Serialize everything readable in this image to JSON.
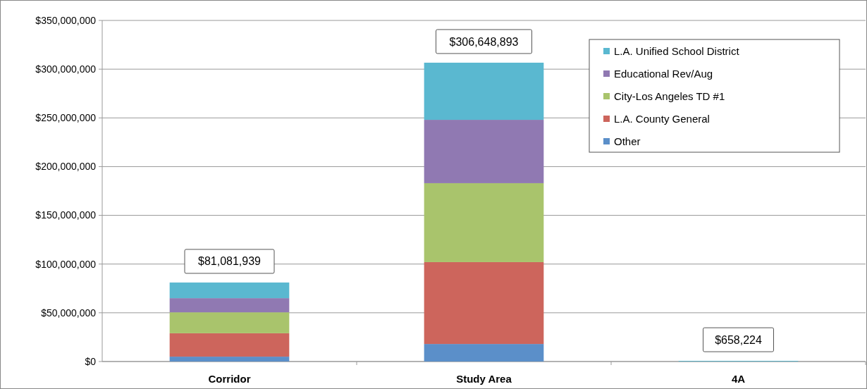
{
  "chart_data": {
    "type": "bar",
    "stacked": true,
    "categories": [
      "Corridor",
      "Study Area",
      "4A"
    ],
    "series": [
      {
        "name": "Other",
        "color": "#5b8fc9",
        "values": [
          5000000,
          18000000,
          0
        ]
      },
      {
        "name": "L.A. County General",
        "color": "#cd655c",
        "values": [
          24000000,
          84000000,
          0
        ]
      },
      {
        "name": "City-Los Angeles TD #1",
        "color": "#a9c46c",
        "values": [
          21500000,
          81000000,
          0
        ]
      },
      {
        "name": "Educational Rev/Aug",
        "color": "#9079b2",
        "values": [
          14500000,
          65000000,
          0
        ]
      },
      {
        "name": "L.A. Unified School District",
        "color": "#5ab8d0",
        "values": [
          16081939,
          58648893,
          658224
        ]
      }
    ],
    "totals": [
      "$81,081,939",
      "$306,648,893",
      "$658,224"
    ],
    "ylim": [
      0,
      350000000
    ],
    "yticks": [
      {
        "value": 0,
        "label": "$0"
      },
      {
        "value": 50000000,
        "label": "$50,000,000"
      },
      {
        "value": 100000000,
        "label": "$100,000,000"
      },
      {
        "value": 150000000,
        "label": "$150,000,000"
      },
      {
        "value": 200000000,
        "label": "$200,000,000"
      },
      {
        "value": 250000000,
        "label": "$250,000,000"
      },
      {
        "value": 300000000,
        "label": "$300,000,000"
      },
      {
        "value": 350000000,
        "label": "$350,000,000"
      }
    ],
    "grid": "y",
    "legend": "top right"
  }
}
